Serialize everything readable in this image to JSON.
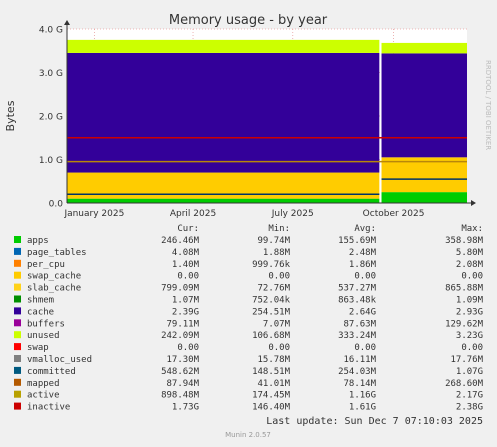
{
  "chart_data": {
    "type": "area",
    "title": "Memory usage - by year",
    "ylabel": "Bytes",
    "xlabel": "",
    "side_label": "RRDTOOL / TOBI OETIKER",
    "ylim": [
      0,
      4.0
    ],
    "y_unit": "G",
    "y_ticks": [
      {
        "value": 0,
        "label": "0.0"
      },
      {
        "value": 1,
        "label": "1.0 G"
      },
      {
        "value": 2,
        "label": "2.0 G"
      },
      {
        "value": 3,
        "label": "3.0 G"
      },
      {
        "value": 4,
        "label": "4.0 G"
      }
    ],
    "x_range": [
      "2024-12-07",
      "2025-12-07"
    ],
    "x_ticks": [
      {
        "date": "2025-01-01",
        "label": "January 2025"
      },
      {
        "date": "2025-04-01",
        "label": "April 2025"
      },
      {
        "date": "2025-07-01",
        "label": "July 2025"
      },
      {
        "date": "2025-10-01",
        "label": "October 2025"
      }
    ],
    "grid": true,
    "legend_placement": "bottom",
    "colors": {
      "apps": "#00cc00",
      "page_tables": "#0066b3",
      "per_cpu": "#ff8000",
      "swap_cache": "#ffcc00",
      "slab_cache": "#330099",
      "shmem": "#990099",
      "cache": "#ccff00",
      "unused": "#ff0000",
      "active": "#b8860b",
      "inactive": "#cc0000",
      "committed": "#003366",
      "vmalloc_used": "#808080"
    },
    "stack_segments": {
      "early_x": [
        "2024-12-07",
        "2025-09-18"
      ],
      "late_x": [
        "2025-09-20",
        "2025-12-07"
      ],
      "early": {
        "apps": 0.1,
        "slab_cache": 0.6,
        "cache": 2.75,
        "unused": 0.3
      },
      "late": {
        "apps": 0.25,
        "slab_cache": 0.8,
        "cache": 2.39,
        "unused": 0.24
      }
    },
    "lines": {
      "active_typical": 0.95,
      "inactive_typical": 1.5,
      "committed_early": 0.2,
      "committed_late": 0.55
    },
    "series": [
      {
        "name": "apps",
        "cur": "246.46M",
        "min": "99.74M",
        "avg": "155.69M",
        "max": "358.98M",
        "color": "#00cc00"
      },
      {
        "name": "page_tables",
        "cur": "4.08M",
        "min": "1.88M",
        "avg": "2.48M",
        "max": "5.80M",
        "color": "#0066b3"
      },
      {
        "name": "per_cpu",
        "cur": "1.40M",
        "min": "999.76k",
        "avg": "1.86M",
        "max": "2.08M",
        "color": "#ff8000"
      },
      {
        "name": "swap_cache",
        "cur": "0.00",
        "min": "0.00",
        "avg": "0.00",
        "max": "0.00",
        "color": "#ffcc00"
      },
      {
        "name": "slab_cache",
        "cur": "799.09M",
        "min": "72.76M",
        "avg": "537.27M",
        "max": "865.88M",
        "color": "#ffd21a"
      },
      {
        "name": "shmem",
        "cur": "1.07M",
        "min": "752.04k",
        "avg": "863.48k",
        "max": "1.09M",
        "color": "#008f00"
      },
      {
        "name": "cache",
        "cur": "2.39G",
        "min": "254.51M",
        "avg": "2.64G",
        "max": "2.93G",
        "color": "#330099"
      },
      {
        "name": "buffers",
        "cur": "79.11M",
        "min": "7.07M",
        "avg": "87.63M",
        "max": "129.62M",
        "color": "#990099"
      },
      {
        "name": "unused",
        "cur": "242.09M",
        "min": "106.68M",
        "avg": "333.24M",
        "max": "3.23G",
        "color": "#ccff00"
      },
      {
        "name": "swap",
        "cur": "0.00",
        "min": "0.00",
        "avg": "0.00",
        "max": "0.00",
        "color": "#ff0000"
      },
      {
        "name": "vmalloc_used",
        "cur": "17.30M",
        "min": "15.78M",
        "avg": "16.11M",
        "max": "17.76M",
        "color": "#808080"
      },
      {
        "name": "committed",
        "cur": "548.62M",
        "min": "148.51M",
        "avg": "254.03M",
        "max": "1.07G",
        "color": "#005a80"
      },
      {
        "name": "mapped",
        "cur": "87.94M",
        "min": "41.01M",
        "avg": "78.14M",
        "max": "268.60M",
        "color": "#b35900"
      },
      {
        "name": "active",
        "cur": "898.48M",
        "min": "174.45M",
        "avg": "1.16G",
        "max": "2.17G",
        "color": "#b8a100"
      },
      {
        "name": "inactive",
        "cur": "1.73G",
        "min": "146.40M",
        "avg": "1.61G",
        "max": "2.38G",
        "color": "#cc0000"
      }
    ],
    "legend_headers": {
      "cur": "Cur:",
      "min": "Min:",
      "avg": "Avg:",
      "max": "Max:"
    },
    "last_update": "Last update: Sun Dec  7 07:10:03 2025",
    "footer": "Munin 2.0.57"
  }
}
